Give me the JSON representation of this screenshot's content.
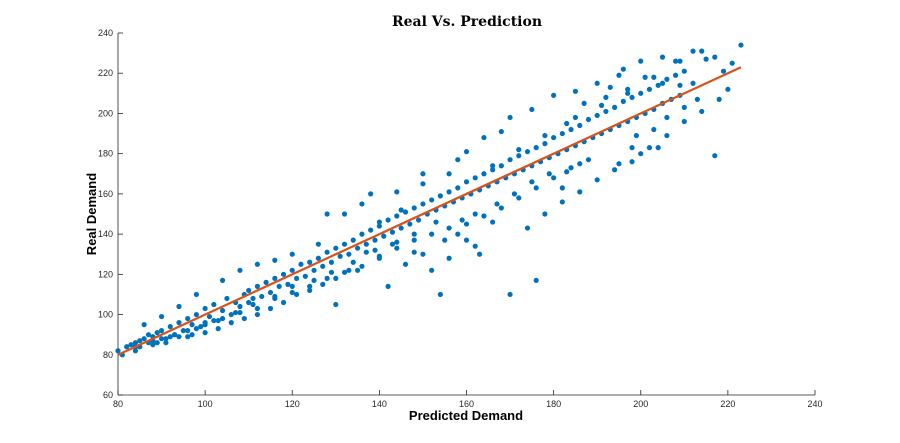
{
  "chart_data": {
    "type": "scatter",
    "title": "Real Vs. Prediction",
    "xlabel": "Predicted Demand",
    "ylabel": "Real Demand",
    "xlim": [
      80,
      240
    ],
    "ylim": [
      60,
      240
    ],
    "xticks": [
      80,
      100,
      120,
      140,
      160,
      180,
      200,
      220,
      240
    ],
    "yticks": [
      60,
      80,
      100,
      120,
      140,
      160,
      180,
      200,
      220,
      240
    ],
    "grid": false,
    "colors": {
      "points": "#0072BD",
      "fit_line": "#D95319"
    },
    "series": [
      {
        "type": "scatter",
        "points": [
          [
            80,
            82
          ],
          [
            81,
            80
          ],
          [
            82,
            84
          ],
          [
            83,
            85
          ],
          [
            84,
            82
          ],
          [
            85,
            87
          ],
          [
            85,
            84
          ],
          [
            86,
            88
          ],
          [
            87,
            86
          ],
          [
            87,
            90
          ],
          [
            88,
            85
          ],
          [
            89,
            91
          ],
          [
            90,
            88
          ],
          [
            90,
            92
          ],
          [
            91,
            86
          ],
          [
            92,
            94
          ],
          [
            93,
            90
          ],
          [
            94,
            96
          ],
          [
            95,
            92
          ],
          [
            96,
            98
          ],
          [
            96,
            89
          ],
          [
            97,
            95
          ],
          [
            98,
            100
          ],
          [
            99,
            94
          ],
          [
            100,
            103
          ],
          [
            100,
            96
          ],
          [
            101,
            99
          ],
          [
            102,
            105
          ],
          [
            103,
            97
          ],
          [
            104,
            102
          ],
          [
            105,
            108
          ],
          [
            106,
            100
          ],
          [
            107,
            106
          ],
          [
            108,
            104
          ],
          [
            109,
            110
          ],
          [
            110,
            106
          ],
          [
            110,
            112
          ],
          [
            111,
            108
          ],
          [
            112,
            114
          ],
          [
            113,
            109
          ],
          [
            114,
            116
          ],
          [
            115,
            111
          ],
          [
            116,
            118
          ],
          [
            117,
            114
          ],
          [
            118,
            120
          ],
          [
            119,
            115
          ],
          [
            120,
            122
          ],
          [
            121,
            118
          ],
          [
            122,
            125
          ],
          [
            123,
            119
          ],
          [
            124,
            126
          ],
          [
            125,
            122
          ],
          [
            126,
            128
          ],
          [
            127,
            124
          ],
          [
            128,
            131
          ],
          [
            129,
            126
          ],
          [
            130,
            133
          ],
          [
            131,
            129
          ],
          [
            132,
            135
          ],
          [
            133,
            130
          ],
          [
            134,
            137
          ],
          [
            135,
            133
          ],
          [
            136,
            140
          ],
          [
            137,
            135
          ],
          [
            138,
            142
          ],
          [
            139,
            137
          ],
          [
            140,
            144
          ],
          [
            141,
            139
          ],
          [
            142,
            147
          ],
          [
            143,
            141
          ],
          [
            144,
            149
          ],
          [
            145,
            143
          ],
          [
            146,
            151
          ],
          [
            147,
            145
          ],
          [
            148,
            153
          ],
          [
            149,
            147
          ],
          [
            150,
            155
          ],
          [
            151,
            150
          ],
          [
            152,
            157
          ],
          [
            153,
            152
          ],
          [
            154,
            159
          ],
          [
            155,
            154
          ],
          [
            156,
            161
          ],
          [
            157,
            156
          ],
          [
            158,
            163
          ],
          [
            159,
            158
          ],
          [
            160,
            166
          ],
          [
            161,
            160
          ],
          [
            162,
            168
          ],
          [
            163,
            162
          ],
          [
            164,
            170
          ],
          [
            165,
            164
          ],
          [
            166,
            172
          ],
          [
            167,
            166
          ],
          [
            168,
            174
          ],
          [
            169,
            168
          ],
          [
            170,
            177
          ],
          [
            171,
            170
          ],
          [
            172,
            179
          ],
          [
            173,
            172
          ],
          [
            174,
            181
          ],
          [
            175,
            174
          ],
          [
            176,
            183
          ],
          [
            177,
            176
          ],
          [
            178,
            185
          ],
          [
            179,
            178
          ],
          [
            180,
            188
          ],
          [
            181,
            180
          ],
          [
            182,
            190
          ],
          [
            183,
            182
          ],
          [
            184,
            192
          ],
          [
            185,
            184
          ],
          [
            186,
            194
          ],
          [
            187,
            186
          ],
          [
            188,
            197
          ],
          [
            189,
            188
          ],
          [
            190,
            199
          ],
          [
            191,
            190
          ],
          [
            192,
            201
          ],
          [
            193,
            192
          ],
          [
            194,
            203
          ],
          [
            195,
            194
          ],
          [
            196,
            206
          ],
          [
            197,
            196
          ],
          [
            198,
            208
          ],
          [
            199,
            198
          ],
          [
            200,
            210
          ],
          [
            201,
            200
          ],
          [
            202,
            212
          ],
          [
            203,
            202
          ],
          [
            204,
            214
          ],
          [
            205,
            205
          ],
          [
            206,
            217
          ],
          [
            207,
            207
          ],
          [
            208,
            219
          ],
          [
            209,
            209
          ],
          [
            210,
            221
          ],
          [
            212,
            231
          ],
          [
            214,
            231
          ],
          [
            217,
            228
          ],
          [
            219,
            221
          ],
          [
            221,
            225
          ],
          [
            223,
            234
          ],
          [
            205,
            228
          ],
          [
            208,
            226
          ],
          [
            200,
            226
          ],
          [
            196,
            222
          ],
          [
            193,
            213
          ],
          [
            217,
            179
          ],
          [
            204,
            183
          ],
          [
            200,
            180
          ],
          [
            198,
            183
          ],
          [
            195,
            175
          ],
          [
            186,
            175
          ],
          [
            183,
            171
          ],
          [
            182,
            163
          ],
          [
            176,
            117
          ],
          [
            170,
            110
          ],
          [
            163,
            130
          ],
          [
            166,
            146
          ],
          [
            162,
            134
          ],
          [
            160,
            137
          ],
          [
            156,
            128
          ],
          [
            152,
            122
          ],
          [
            155,
            137
          ],
          [
            158,
            140
          ],
          [
            150,
            130
          ],
          [
            146,
            125
          ],
          [
            142,
            114
          ],
          [
            154,
            110
          ],
          [
            148,
            131
          ],
          [
            144,
            136
          ],
          [
            140,
            128
          ],
          [
            137,
            131
          ],
          [
            133,
            122
          ],
          [
            130,
            118
          ],
          [
            127,
            115
          ],
          [
            124,
            112
          ],
          [
            121,
            110
          ],
          [
            118,
            106
          ],
          [
            115,
            103
          ],
          [
            112,
            100
          ],
          [
            109,
            98
          ],
          [
            106,
            96
          ],
          [
            103,
            93
          ],
          [
            100,
            91
          ],
          [
            97,
            90
          ],
          [
            94,
            89
          ],
          [
            91,
            88
          ],
          [
            88,
            87
          ],
          [
            130,
            105
          ],
          [
            135,
            122
          ],
          [
            140,
            146
          ],
          [
            136,
            155
          ],
          [
            128,
            150
          ],
          [
            132,
            150
          ],
          [
            145,
            152
          ],
          [
            150,
            165
          ],
          [
            156,
            170
          ],
          [
            160,
            181
          ],
          [
            164,
            188
          ],
          [
            170,
            198
          ],
          [
            175,
            202
          ],
          [
            180,
            209
          ],
          [
            185,
            211
          ],
          [
            190,
            215
          ],
          [
            195,
            219
          ],
          [
            168,
            191
          ],
          [
            158,
            177
          ],
          [
            150,
            170
          ],
          [
            144,
            161
          ],
          [
            138,
            160
          ],
          [
            126,
            135
          ],
          [
            120,
            130
          ],
          [
            116,
            127
          ],
          [
            112,
            125
          ],
          [
            108,
            122
          ],
          [
            104,
            117
          ],
          [
            98,
            110
          ],
          [
            94,
            104
          ],
          [
            90,
            99
          ],
          [
            86,
            95
          ],
          [
            183,
            195
          ],
          [
            187,
            205
          ],
          [
            192,
            208
          ],
          [
            197,
            210
          ],
          [
            201,
            218
          ],
          [
            205,
            215
          ],
          [
            209,
            214
          ],
          [
            212,
            215
          ],
          [
            179,
            170
          ],
          [
            175,
            166
          ],
          [
            171,
            160
          ],
          [
            167,
            155
          ],
          [
            162,
            150
          ],
          [
            159,
            147
          ],
          [
            153,
            146
          ],
          [
            148,
            140
          ],
          [
            143,
            135
          ],
          [
            139,
            132
          ],
          [
            134,
            126
          ],
          [
            129,
            121
          ],
          [
            125,
            117
          ],
          [
            120,
            114
          ],
          [
            116,
            109
          ],
          [
            111,
            105
          ],
          [
            107,
            101
          ],
          [
            102,
            97
          ],
          [
            98,
            93
          ],
          [
            93,
            90
          ],
          [
            89,
            86
          ],
          [
            84,
            84
          ],
          [
            199,
            189
          ],
          [
            203,
            192
          ],
          [
            206,
            198
          ],
          [
            210,
            203
          ],
          [
            213,
            207
          ],
          [
            188,
            177
          ],
          [
            184,
            173
          ],
          [
            180,
            168
          ],
          [
            176,
            163
          ],
          [
            172,
            158
          ],
          [
            168,
            153
          ],
          [
            164,
            149
          ],
          [
            160,
            145
          ],
          [
            156,
            143
          ],
          [
            152,
            140
          ],
          [
            148,
            137
          ],
          [
            144,
            133
          ],
          [
            140,
            129
          ],
          [
            136,
            124
          ],
          [
            132,
            121
          ],
          [
            128,
            118
          ],
          [
            124,
            114
          ],
          [
            120,
            111
          ],
          [
            116,
            108
          ],
          [
            112,
            103
          ],
          [
            108,
            101
          ],
          [
            104,
            98
          ],
          [
            100,
            95
          ],
          [
            96,
            92
          ],
          [
            92,
            89
          ],
          [
            88,
            89
          ],
          [
            84,
            86
          ],
          [
            166,
            174
          ],
          [
            172,
            182
          ],
          [
            178,
            189
          ],
          [
            185,
            198
          ],
          [
            191,
            204
          ],
          [
            197,
            212
          ],
          [
            203,
            218
          ],
          [
            209,
            226
          ],
          [
            215,
            227
          ],
          [
            174,
            143
          ],
          [
            178,
            150
          ],
          [
            182,
            156
          ],
          [
            186,
            161
          ],
          [
            190,
            167
          ],
          [
            194,
            172
          ],
          [
            198,
            176
          ],
          [
            202,
            183
          ],
          [
            206,
            189
          ],
          [
            210,
            196
          ],
          [
            214,
            201
          ],
          [
            218,
            207
          ],
          [
            220,
            212
          ]
        ]
      },
      {
        "type": "line",
        "x": [
          80,
          223
        ],
        "y": [
          80,
          223
        ]
      }
    ]
  }
}
